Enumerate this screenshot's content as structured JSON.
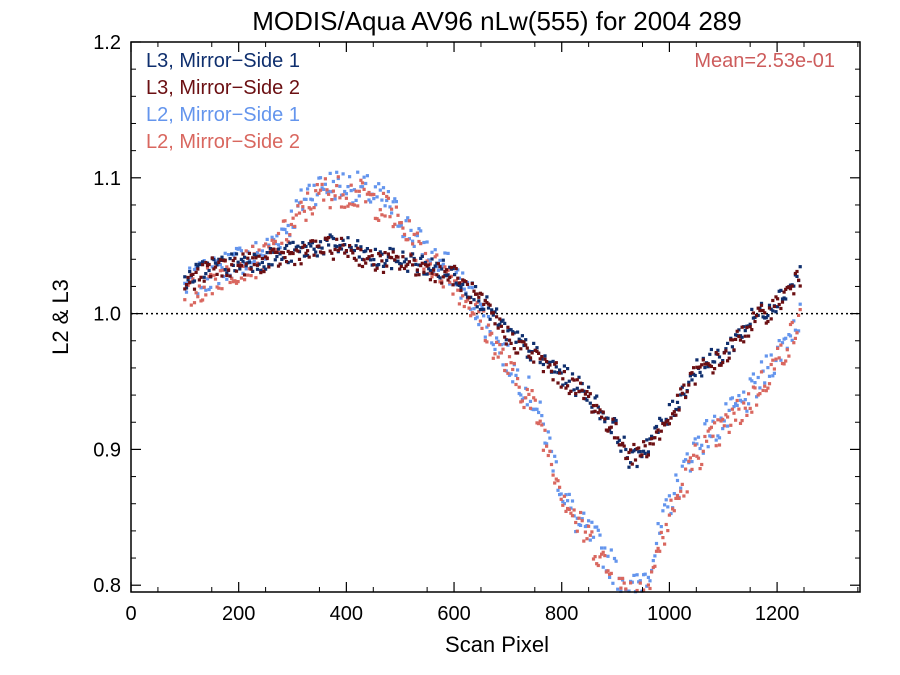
{
  "chart_data": {
    "type": "scatter",
    "title": "MODIS/Aqua AV96 nLw(555) for 2004 289",
    "xlabel": "Scan Pixel",
    "ylabel": "L2 & L3",
    "xlim": [
      0,
      1354
    ],
    "ylim": [
      0.795,
      1.2
    ],
    "x_ticks": [
      0,
      200,
      400,
      600,
      800,
      1000,
      1200
    ],
    "y_ticks": [
      0.8,
      0.9,
      1.0,
      1.1,
      1.2
    ],
    "x_tick_labels": [
      "0",
      "200",
      "400",
      "600",
      "800",
      "1000",
      "1200"
    ],
    "y_tick_labels": [
      "0.8",
      "0.9",
      "1.0",
      "1.1",
      "1.2"
    ],
    "reference_line": 1.0,
    "annotation": "Mean=2.53e-01",
    "annotation_color": "#cd5c5c",
    "legend_position": "top-left",
    "grid": false,
    "series": [
      {
        "name": "L3, Mirror−Side 1",
        "color": "#0f2f6e",
        "x": [
          100,
          150,
          200,
          250,
          300,
          350,
          400,
          450,
          500,
          550,
          600,
          650,
          700,
          750,
          800,
          850,
          900,
          930,
          960,
          1000,
          1050,
          1100,
          1150,
          1200,
          1245
        ],
        "y": [
          1.025,
          1.035,
          1.038,
          1.04,
          1.045,
          1.05,
          1.05,
          1.04,
          1.04,
          1.035,
          1.03,
          1.01,
          0.985,
          0.97,
          0.955,
          0.94,
          0.915,
          0.89,
          0.905,
          0.925,
          0.96,
          0.97,
          0.995,
          1.01,
          1.03
        ],
        "spread": 0.008
      },
      {
        "name": "L3, Mirror−Side 2",
        "color": "#6b0f12",
        "x": [
          100,
          150,
          200,
          250,
          300,
          350,
          400,
          450,
          500,
          550,
          600,
          650,
          700,
          750,
          800,
          850,
          900,
          930,
          960,
          1000,
          1050,
          1100,
          1150,
          1200,
          1245
        ],
        "y": [
          1.022,
          1.033,
          1.036,
          1.038,
          1.043,
          1.048,
          1.048,
          1.038,
          1.038,
          1.033,
          1.028,
          1.008,
          0.983,
          0.968,
          0.953,
          0.938,
          0.912,
          0.895,
          0.902,
          0.922,
          0.957,
          0.967,
          0.992,
          1.007,
          1.027
        ],
        "spread": 0.008
      },
      {
        "name": "L2, Mirror−Side 1",
        "color": "#6495ed",
        "x": [
          100,
          150,
          200,
          250,
          300,
          330,
          360,
          400,
          440,
          480,
          520,
          560,
          600,
          650,
          700,
          750,
          780,
          800,
          830,
          860,
          900,
          930,
          960,
          1000,
          1050,
          1100,
          1150,
          1200,
          1245
        ],
        "y": [
          1.02,
          1.03,
          1.04,
          1.045,
          1.07,
          1.09,
          1.095,
          1.095,
          1.09,
          1.08,
          1.06,
          1.04,
          1.03,
          1.0,
          0.965,
          0.935,
          0.9,
          0.87,
          0.845,
          0.835,
          0.81,
          0.795,
          0.81,
          0.86,
          0.905,
          0.92,
          0.94,
          0.97,
          1.0
        ],
        "spread": 0.012
      },
      {
        "name": "L2, Mirror−Side 2",
        "color": "#d9675f",
        "x": [
          100,
          150,
          200,
          250,
          300,
          330,
          360,
          400,
          440,
          480,
          520,
          560,
          600,
          650,
          700,
          750,
          780,
          800,
          830,
          860,
          900,
          930,
          960,
          1000,
          1050,
          1100,
          1150,
          1200,
          1245
        ],
        "y": [
          1.01,
          1.025,
          1.035,
          1.04,
          1.065,
          1.08,
          1.09,
          1.09,
          1.085,
          1.075,
          1.055,
          1.035,
          1.025,
          0.995,
          0.96,
          0.93,
          0.895,
          0.87,
          0.845,
          0.83,
          0.8,
          0.795,
          0.8,
          0.85,
          0.895,
          0.915,
          0.935,
          0.965,
          0.995
        ],
        "spread": 0.012
      }
    ]
  }
}
